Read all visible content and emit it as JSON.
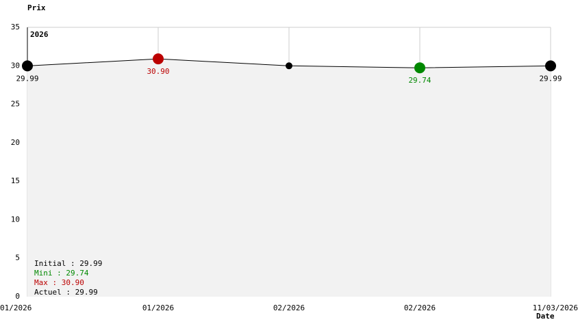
{
  "chart_data": {
    "type": "line",
    "y_label": "Prix",
    "x_label": "Date",
    "annotation": "2026",
    "categories": [
      "01/2026",
      "01/2026",
      "02/2026",
      "02/2026",
      "11/03/2026"
    ],
    "values": [
      29.99,
      30.9,
      30.0,
      29.74,
      29.99
    ],
    "value_labels": [
      "29.99",
      "30.90",
      null,
      "29.74",
      "29.99"
    ],
    "marker_colors": [
      "#000000",
      "#bb0000",
      "#000000",
      "#008800",
      "#000000"
    ],
    "color": "#000000",
    "fill": "#f2f2f2",
    "ylim": [
      0,
      35
    ],
    "yticks": [
      0,
      5,
      10,
      15,
      20,
      25,
      30,
      35
    ],
    "summary": [
      {
        "text": "Initial : 29.99",
        "color": "#000000"
      },
      {
        "text": "Mini : 29.74",
        "color": "#008800"
      },
      {
        "text": "Max : 30.90",
        "color": "#bb0000"
      },
      {
        "text": "Actuel : 29.99",
        "color": "#000000"
      }
    ]
  }
}
